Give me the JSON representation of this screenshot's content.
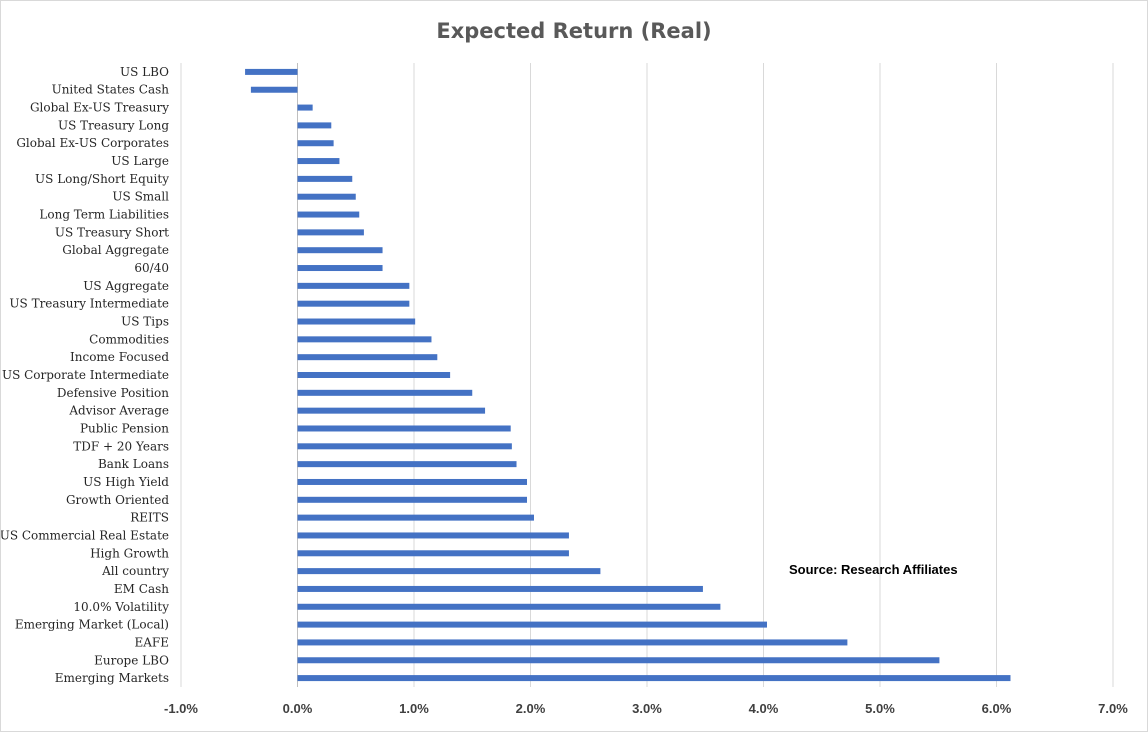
{
  "chart_data": {
    "type": "bar",
    "orientation": "horizontal",
    "title": "Expected Return (Real)",
    "xlabel": "",
    "ylabel": "",
    "annotation": "Source: Research Affiliates",
    "bar_color": "#4472c4",
    "grid": true,
    "legend": "none",
    "xlim": [
      -1.0,
      7.0
    ],
    "x_ticks": [
      -1.0,
      0.0,
      1.0,
      2.0,
      3.0,
      4.0,
      5.0,
      6.0,
      7.0
    ],
    "x_tick_labels": [
      "-1.0%",
      "0.0%",
      "1.0%",
      "2.0%",
      "3.0%",
      "4.0%",
      "5.0%",
      "6.0%",
      "7.0%"
    ],
    "categories": [
      "US LBO",
      "United States Cash",
      "Global Ex-US Treasury",
      "US Treasury Long",
      "Global Ex-US Corporates",
      "US Large",
      "US Long/Short Equity",
      "US Small",
      "Long Term Liabilities",
      "US Treasury Short",
      "Global Aggregate",
      "60/40",
      "US Aggregate",
      "US Treasury Intermediate",
      "US Tips",
      "Commodities",
      "Income Focused",
      "US Corporate Intermediate",
      "Defensive Position",
      "Advisor Average",
      "Public Pension",
      "TDF + 20 Years",
      "Bank Loans",
      "US High Yield",
      "Growth Oriented",
      "REITS",
      "US Commercial Real Estate",
      "High Growth",
      "All country",
      "EM Cash",
      "10.0% Volatility",
      "Emerging Market (Local)",
      "EAFE",
      "Europe LBO",
      "Emerging Markets"
    ],
    "values": [
      -0.45,
      -0.4,
      0.13,
      0.29,
      0.31,
      0.36,
      0.47,
      0.5,
      0.53,
      0.57,
      0.73,
      0.73,
      0.96,
      0.96,
      1.01,
      1.15,
      1.2,
      1.31,
      1.5,
      1.61,
      1.83,
      1.84,
      1.88,
      1.97,
      1.97,
      2.03,
      2.33,
      2.33,
      2.6,
      3.48,
      3.63,
      4.03,
      4.72,
      5.51,
      6.12
    ]
  }
}
